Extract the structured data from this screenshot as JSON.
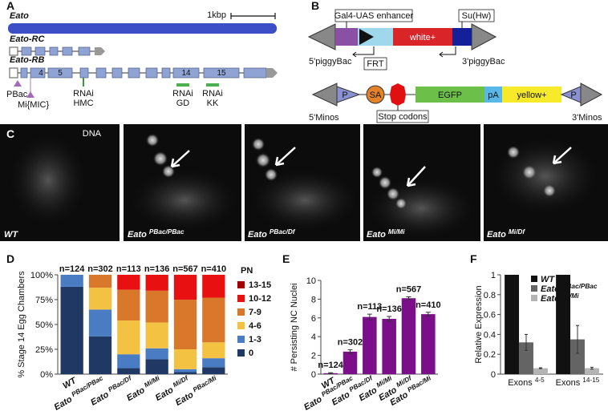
{
  "panel_labels": [
    "A",
    "B",
    "C",
    "D",
    "E",
    "F"
  ],
  "gene_diagram": {
    "gene": "Eato",
    "scale": "1kbp",
    "transcripts": [
      "Eato-RC",
      "Eato-RB"
    ],
    "exons": [
      "4",
      "5",
      "14",
      "15"
    ],
    "insertions": [
      "PBac",
      "Mi{MIC}"
    ],
    "rnai": [
      [
        "RNAi",
        "HMC"
      ],
      [
        "RNAi",
        "GD"
      ],
      [
        "RNAi",
        "KK"
      ]
    ]
  },
  "constructs": {
    "piggybac": {
      "enhancer": "Gal4-UAS enhancer",
      "insulator": "Su(Hw)",
      "marker": "white+",
      "left": "5'piggyBac",
      "right": "3'piggyBac",
      "site": "FRT"
    },
    "minos": {
      "p_left": "P",
      "sa": "SA",
      "egfp": "EGFP",
      "pa": "pA",
      "marker": "yellow+",
      "p_right": "P",
      "left": "5'Minos",
      "right": "3'Minos",
      "stop": "Stop codons"
    }
  },
  "images": {
    "stain": "DNA",
    "genotypes": [
      "WT",
      "Eato PBac/PBac",
      "Eato PBac/Df",
      "Eato Mi/Mi",
      "Eato Mi/Df"
    ]
  },
  "chart_data": [
    {
      "type": "bar",
      "stacked": true,
      "ylabel": "% Stage 14 Egg Chambers",
      "categories": [
        "WT",
        "Eato PBac/PBac",
        "Eato PBac/Df",
        "Eato Mi/Mi",
        "Eato Mi/Df",
        "Eato PBac/Mi"
      ],
      "n_labels": [
        "n=124",
        "n=302",
        "n=113",
        "n=136",
        "n=567",
        "n=410"
      ],
      "legend_title": "PN",
      "series": [
        {
          "name": "0",
          "color": "#1f3864",
          "values": [
            88,
            38,
            6,
            15,
            2,
            7
          ]
        },
        {
          "name": "1-3",
          "color": "#4a7cc4",
          "values": [
            12,
            27,
            14,
            11,
            3,
            9
          ]
        },
        {
          "name": "4-6",
          "color": "#f4c242",
          "values": [
            0,
            22,
            34,
            26,
            20,
            16
          ]
        },
        {
          "name": "7-9",
          "color": "#d9782b",
          "values": [
            0,
            13,
            31,
            32,
            50,
            45
          ]
        },
        {
          "name": "10-12",
          "color": "#e81010",
          "values": [
            0,
            0,
            15,
            16,
            25,
            23
          ]
        },
        {
          "name": "13-15",
          "color": "#a50000",
          "values": [
            0,
            0,
            0,
            0,
            0,
            0
          ]
        }
      ],
      "ylim": [
        0,
        100
      ],
      "yticks": [
        {
          "value": 0,
          "label": "0%"
        },
        {
          "value": 25,
          "label": "25%"
        },
        {
          "value": 50,
          "label": "50%"
        },
        {
          "value": 75,
          "label": "75%"
        },
        {
          "value": 100,
          "label": "100%"
        }
      ]
    },
    {
      "type": "bar",
      "ylabel": "# Persisting NC Nuclei",
      "categories": [
        "WT",
        "Eato PBac/PBac",
        "Eato PBac/Df",
        "Eato Mi/Mi",
        "Eato Mi/Df",
        "Eato PBac/Mi"
      ],
      "n_labels": [
        "n=124",
        "n=302",
        "n=113",
        "n=136",
        "n=567",
        "n=410"
      ],
      "values": [
        0.1,
        2.4,
        6.1,
        5.9,
        8.1,
        6.4
      ],
      "errors": [
        0.05,
        0.2,
        0.3,
        0.25,
        0.15,
        0.2
      ],
      "color": "#7b0f8a",
      "ylim": [
        0,
        10
      ],
      "yticks": [
        0,
        2,
        4,
        6,
        8,
        10
      ]
    },
    {
      "type": "bar",
      "ylabel": "Relative Expression",
      "categories": [
        "Exons 4-5",
        "Exons 14-15"
      ],
      "series": [
        {
          "name": "WT",
          "color": "#111111",
          "values": [
            1,
            1
          ]
        },
        {
          "name": "Eato PBac/PBac",
          "color": "#646464",
          "values": [
            0.32,
            0.35
          ],
          "errors": [
            0.08,
            0.14
          ]
        },
        {
          "name": "Eato Mi/Mi",
          "color": "#b4b4b4",
          "values": [
            0.06,
            0.06
          ],
          "errors": [
            0.005,
            0.01
          ]
        }
      ],
      "ylim": [
        0,
        1
      ],
      "yticks": [
        0,
        0.2,
        0.4,
        0.6,
        0.8,
        1
      ]
    }
  ]
}
